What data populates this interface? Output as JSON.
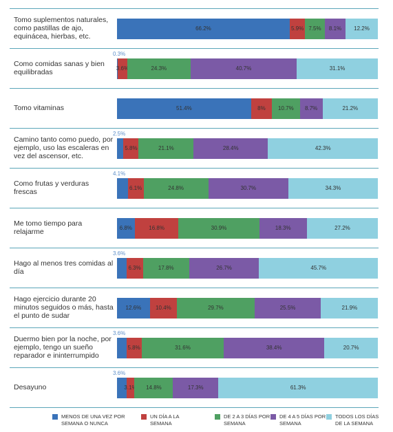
{
  "chart_data": {
    "type": "stacked-bar-horizontal",
    "categories": [
      "Tomo suplementos naturales, como pastillas de ajo, equinácea, hierbas, etc.",
      "Como comidas sanas y bien equilibradas",
      "Tomo vitaminas",
      "Camino tanto como puedo, por ejemplo, uso las escaleras en vez del ascensor, etc.",
      "Como frutas y verduras frescas",
      "Me tomo tiempo para relajarme",
      "Hago al menos tres comidas al día",
      "Hago ejercicio durante 20 minutos seguidos o más, hasta el punto de sudar",
      "Duermo bien por la noche, por ejemplo, tengo un sueño reparador e ininterrumpido",
      "Desayuno"
    ],
    "xlim": [
      0,
      100
    ],
    "series": [
      {
        "name": "MENOS DE UNA VEZ POR SEMANA O NUNCA",
        "color": "#3a73b9",
        "values": [
          66.2,
          0.3,
          51.4,
          2.5,
          4.1,
          6.8,
          3.6,
          12.6,
          3.6,
          3.6
        ],
        "value_labels": [
          "66.2%",
          "0.3%",
          "51.4%",
          "2.5%",
          "4.1%",
          "6.8%",
          "3.6%",
          "12.6%",
          "3.6%",
          "3.6%"
        ]
      },
      {
        "name": "UN DÍA A LA SEMANA",
        "color": "#c0413f",
        "values": [
          5.9,
          3.6,
          8,
          5.8,
          6.1,
          16.8,
          6.3,
          10.4,
          5.8,
          3.1
        ],
        "value_labels": [
          "5.9%",
          "3.6%",
          "8%",
          "5.8%",
          "6.1%",
          "16.8%",
          "6.3%",
          "10.4%",
          "5.8%",
          "3.1%"
        ]
      },
      {
        "name": "DE 2 A 3 DÍAS POR SEMANA",
        "color": "#4fa062",
        "values": [
          7.5,
          24.3,
          10.7,
          21.1,
          24.8,
          30.9,
          17.8,
          29.7,
          31.6,
          14.8
        ],
        "value_labels": [
          "7.5%",
          "24.3%",
          "10.7%",
          "21.1%",
          "24.8%",
          "30.9%",
          "17.8%",
          "29.7%",
          "31.6%",
          "14.8%"
        ]
      },
      {
        "name": "DE 4 A 5 DÍAS POR SEMANA",
        "color": "#7b5aa6",
        "values": [
          8.1,
          40.7,
          8.7,
          28.4,
          30.7,
          18.3,
          26.7,
          25.5,
          38.4,
          17.3
        ],
        "value_labels": [
          "8.1%",
          "40.7%",
          "8.7%",
          "28.4%",
          "30.7%",
          "18.3%",
          "26.7%",
          "25.5%",
          "38.4%",
          "17.3%"
        ]
      },
      {
        "name": "TODOS LOS DÍAS DE LA SEMANA",
        "color": "#8fd0e0",
        "values": [
          12.2,
          31.1,
          21.2,
          42.3,
          34.3,
          27.2,
          45.7,
          21.9,
          20.7,
          61.3
        ],
        "value_labels": [
          "12.2%",
          "31.1%",
          "21.2%",
          "42.3%",
          "34.3%",
          "27.2%",
          "45.7%",
          "21.9%",
          "20.7%",
          "61.3%"
        ]
      }
    ]
  }
}
